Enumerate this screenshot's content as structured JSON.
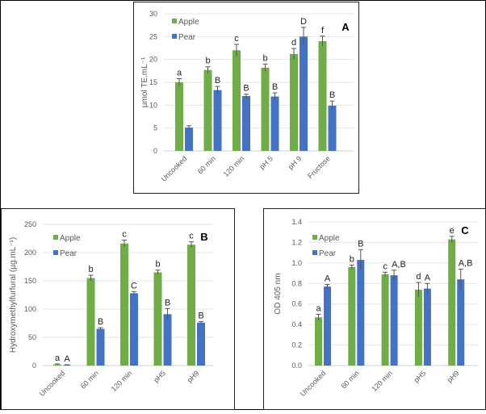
{
  "colors": {
    "apple": "#70ad47",
    "pear": "#4472c4"
  },
  "chart_data": [
    {
      "type": "bar",
      "panel": "A",
      "ylabel": "µmol TE.mL⁻¹",
      "ylim": [
        0,
        30
      ],
      "yticks": [
        0,
        5,
        10,
        15,
        20,
        25,
        30
      ],
      "grid": true,
      "legend": "top-left",
      "categories": [
        "Uncooked",
        "60 min",
        "120 min",
        "pH 5",
        "pH 9",
        "Fructose"
      ],
      "series": [
        {
          "name": "Apple",
          "values": [
            15,
            17.7,
            22,
            18.2,
            21.2,
            24
          ],
          "errors": [
            0.8,
            0.7,
            1.3,
            0.8,
            1.2,
            1.1
          ],
          "letters": [
            "a",
            "b",
            "c",
            "b",
            "d",
            "f"
          ]
        },
        {
          "name": "Pear",
          "values": [
            5.1,
            13.3,
            12,
            11.9,
            25,
            9.9
          ],
          "errors": [
            0.4,
            0.8,
            0.4,
            0.8,
            2,
            1
          ],
          "letters": [
            "",
            "B",
            "B",
            "B",
            "D",
            "B"
          ]
        }
      ]
    },
    {
      "type": "bar",
      "panel": "B",
      "ylabel": "Hydroxymethylfurfural (µg.mL⁻¹)",
      "ylim": [
        0,
        250
      ],
      "yticks": [
        0,
        50,
        100,
        150,
        200,
        250
      ],
      "grid": true,
      "legend": "top-left",
      "categories": [
        "Uncooked",
        "60 min",
        "120 min",
        "pH5",
        "pH9"
      ],
      "series": [
        {
          "name": "Apple",
          "values": [
            2,
            155,
            216,
            165,
            214
          ],
          "errors": [
            1,
            5,
            6,
            4,
            5
          ],
          "letters": [
            "a",
            "b",
            "c",
            "b",
            "c"
          ]
        },
        {
          "name": "Pear",
          "values": [
            1,
            65,
            128,
            91,
            76
          ],
          "errors": [
            0.5,
            2,
            3,
            10,
            2
          ],
          "letters": [
            "A",
            "B",
            "C",
            "B",
            "B"
          ]
        }
      ]
    },
    {
      "type": "bar",
      "panel": "C",
      "ylabel": "OD 405 nm",
      "ylim": [
        0,
        1.4
      ],
      "yticks": [
        "0.0",
        "0.2",
        "0.4",
        "0.6",
        "0.8",
        "1.0",
        "1.2",
        "1.4"
      ],
      "grid": true,
      "legend": "top-left",
      "categories": [
        "Uncooked",
        "60 min",
        "120 min",
        "pH5",
        "pH9"
      ],
      "series": [
        {
          "name": "Apple",
          "values": [
            0.47,
            0.96,
            0.89,
            0.74,
            1.23
          ],
          "errors": [
            0.03,
            0.02,
            0.02,
            0.07,
            0.03
          ],
          "letters": [
            "a",
            "b",
            "c",
            "d",
            "e"
          ]
        },
        {
          "name": "Pear",
          "values": [
            0.77,
            1.03,
            0.88,
            0.75,
            0.84
          ],
          "errors": [
            0.02,
            0.1,
            0.05,
            0.05,
            0.1
          ],
          "letters": [
            "A",
            "B",
            "A,B",
            "A",
            "A,B"
          ]
        }
      ]
    }
  ]
}
